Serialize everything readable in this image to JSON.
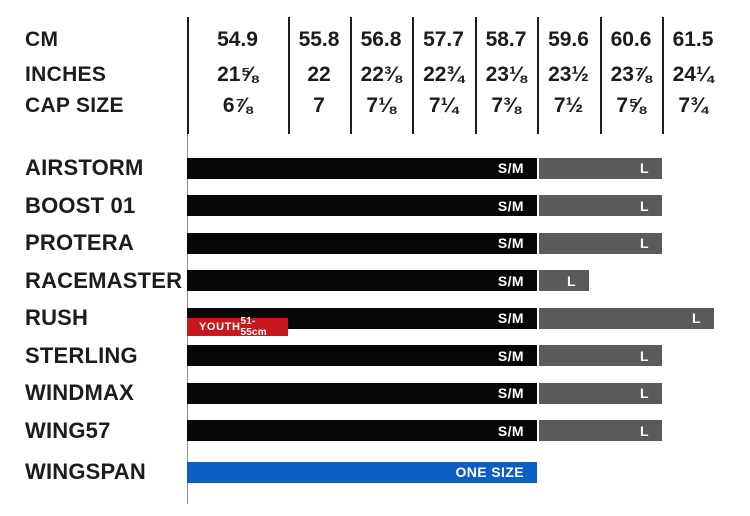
{
  "colors": {
    "sm": "#060606",
    "l": "#5a5a5a",
    "youth": "#c8181d",
    "onesize": "#0b5ec6",
    "text": "#1c1c1c"
  },
  "header": {
    "rows": [
      {
        "label": "CM",
        "values": [
          "54.9",
          "55.8",
          "56.8",
          "57.7",
          "58.7",
          "59.6",
          "60.6",
          "61.5"
        ]
      },
      {
        "label": "INCHES",
        "values": [
          "21⅝",
          "22",
          "22⅜",
          "22¾",
          "23⅛",
          "23½",
          "23⅞",
          "24¼"
        ]
      },
      {
        "label": "CAP SIZE",
        "values": [
          "6⅞",
          "7",
          "7⅛",
          "7¼",
          "7⅜",
          "7½",
          "7⅝",
          "7¾"
        ]
      }
    ]
  },
  "products": [
    {
      "name": "AIRSTORM",
      "segments": [
        {
          "label": "S/M",
          "style": "sm",
          "start": 0,
          "end": 5
        },
        {
          "label": "L",
          "style": "l",
          "start": 5,
          "end": 7
        }
      ]
    },
    {
      "name": "BOOST 01",
      "segments": [
        {
          "label": "S/M",
          "style": "sm",
          "start": 0,
          "end": 5
        },
        {
          "label": "L",
          "style": "l",
          "start": 5,
          "end": 7
        }
      ]
    },
    {
      "name": "PROTERA",
      "segments": [
        {
          "label": "S/M",
          "style": "sm",
          "start": 0,
          "end": 5
        },
        {
          "label": "L",
          "style": "l",
          "start": 5,
          "end": 7
        }
      ]
    },
    {
      "name": "RACEMASTER",
      "segments": [
        {
          "label": "S/M",
          "style": "sm",
          "start": 0,
          "end": 5
        },
        {
          "label": "L",
          "style": "l",
          "start": 5,
          "end": 8,
          "width_adjust": -135
        }
      ]
    },
    {
      "name": "RUSH",
      "segments": [
        {
          "label": "S/M",
          "style": "sm",
          "start": 0,
          "end": 5
        },
        {
          "label": "L",
          "style": "l",
          "start": 5,
          "end": 8,
          "width_adjust": -10
        },
        {
          "label": "YOUTH",
          "sublabel": "51-55cm",
          "style": "youth",
          "start": 0,
          "end": 1
        }
      ]
    },
    {
      "name": "STERLING",
      "segments": [
        {
          "label": "S/M",
          "style": "sm",
          "start": 0,
          "end": 5
        },
        {
          "label": "L",
          "style": "l",
          "start": 5,
          "end": 7
        }
      ]
    },
    {
      "name": "WINDMAX",
      "segments": [
        {
          "label": "S/M",
          "style": "sm",
          "start": 0,
          "end": 5
        },
        {
          "label": "L",
          "style": "l",
          "start": 5,
          "end": 7
        }
      ]
    },
    {
      "name": "WING57",
      "segments": [
        {
          "label": "S/M",
          "style": "sm",
          "start": 0,
          "end": 5
        },
        {
          "label": "L",
          "style": "l",
          "start": 5,
          "end": 7
        }
      ]
    },
    {
      "name": "WINGSPAN",
      "segments": [
        {
          "label": "ONE SIZE",
          "style": "onesize",
          "start": 0,
          "end": 5
        }
      ]
    }
  ],
  "chart_data": {
    "type": "table",
    "title": "Helmet size chart",
    "columns": [
      {
        "label": "CM",
        "values": [
          54.9,
          55.8,
          56.8,
          57.7,
          58.7,
          59.6,
          60.6,
          61.5
        ]
      },
      {
        "label": "INCHES",
        "values": [
          "21⅝",
          "22",
          "22⅜",
          "22¾",
          "23⅛",
          "23½",
          "23⅞",
          "24¼"
        ]
      },
      {
        "label": "CAP SIZE",
        "values": [
          "6⅞",
          "7",
          "7⅛",
          "7¼",
          "7⅜",
          "7½",
          "7⅝",
          "7¾"
        ]
      }
    ],
    "rows": [
      {
        "product": "AIRSTORM",
        "sizes": [
          {
            "size": "S/M",
            "cm_min": 54.9,
            "cm_max": 58.7
          },
          {
            "size": "L",
            "cm_min": 59.6,
            "cm_max": 60.6
          }
        ]
      },
      {
        "product": "BOOST 01",
        "sizes": [
          {
            "size": "S/M",
            "cm_min": 54.9,
            "cm_max": 58.7
          },
          {
            "size": "L",
            "cm_min": 59.6,
            "cm_max": 60.6
          }
        ]
      },
      {
        "product": "PROTERA",
        "sizes": [
          {
            "size": "S/M",
            "cm_min": 54.9,
            "cm_max": 58.7
          },
          {
            "size": "L",
            "cm_min": 59.6,
            "cm_max": 60.6
          }
        ]
      },
      {
        "product": "RACEMASTER",
        "sizes": [
          {
            "size": "S/M",
            "cm_min": 54.9,
            "cm_max": 58.7
          },
          {
            "size": "L",
            "cm_min": 59.6,
            "cm_max": 60.6
          }
        ]
      },
      {
        "product": "RUSH",
        "sizes": [
          {
            "size": "YOUTH",
            "range": "51-55cm"
          },
          {
            "size": "S/M",
            "cm_min": 54.9,
            "cm_max": 58.7
          },
          {
            "size": "L",
            "cm_min": 59.6,
            "cm_max": 61.5
          }
        ]
      },
      {
        "product": "STERLING",
        "sizes": [
          {
            "size": "S/M",
            "cm_min": 54.9,
            "cm_max": 58.7
          },
          {
            "size": "L",
            "cm_min": 59.6,
            "cm_max": 60.6
          }
        ]
      },
      {
        "product": "WINDMAX",
        "sizes": [
          {
            "size": "S/M",
            "cm_min": 54.9,
            "cm_max": 58.7
          },
          {
            "size": "L",
            "cm_min": 59.6,
            "cm_max": 60.6
          }
        ]
      },
      {
        "product": "WING57",
        "sizes": [
          {
            "size": "S/M",
            "cm_min": 54.9,
            "cm_max": 58.7
          },
          {
            "size": "L",
            "cm_min": 59.6,
            "cm_max": 60.6
          }
        ]
      },
      {
        "product": "WINGSPAN",
        "sizes": [
          {
            "size": "ONE SIZE",
            "cm_min": 54.9,
            "cm_max": 58.7
          }
        ]
      }
    ]
  }
}
